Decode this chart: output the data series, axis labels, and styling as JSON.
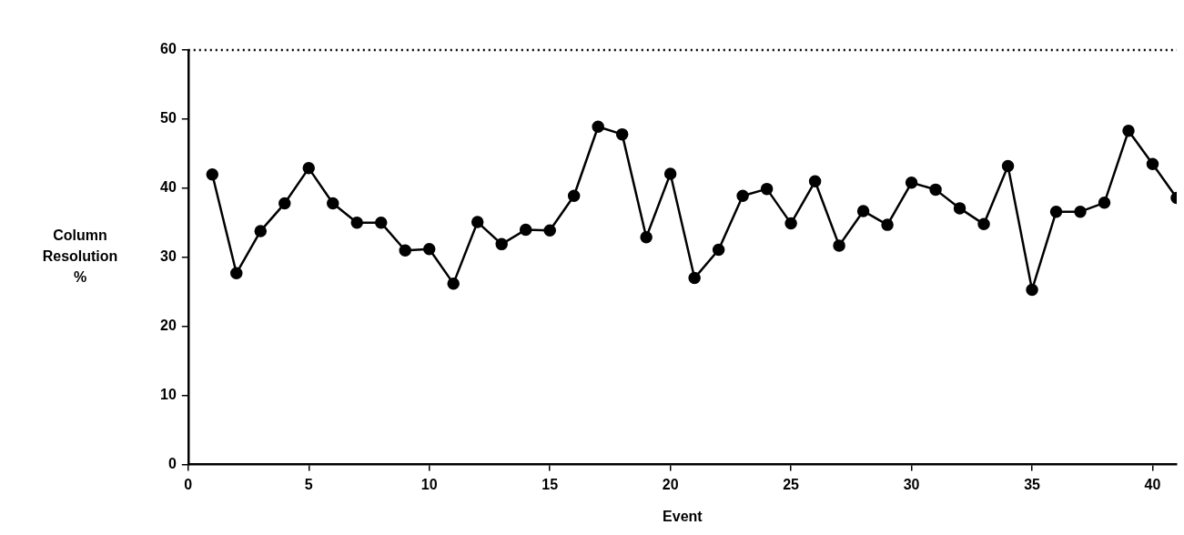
{
  "chart_data": {
    "type": "line",
    "xlabel": "Event",
    "ylabel": "Column Resolution %",
    "x": [
      1,
      2,
      3,
      4,
      5,
      6,
      7,
      8,
      9,
      10,
      11,
      12,
      13,
      14,
      15,
      16,
      17,
      18,
      19,
      20,
      21,
      22,
      23,
      24,
      25,
      26,
      27,
      28,
      29,
      30,
      31,
      32,
      33,
      34,
      35,
      36,
      37,
      38,
      39,
      40,
      41
    ],
    "series": [
      {
        "color": "#000000",
        "values": [
          42,
          27.7,
          33.8,
          37.8,
          42.9,
          37.8,
          35,
          35,
          31,
          31.2,
          26.2,
          35.1,
          31.9,
          34,
          33.9,
          38.9,
          48.9,
          47.8,
          32.9,
          42.1,
          27,
          31.1,
          38.9,
          39.9,
          34.9,
          41,
          31.7,
          36.7,
          34.7,
          40.8,
          39.8,
          37.1,
          34.8,
          43.2,
          25.3,
          36.6,
          36.6,
          37.9,
          48.3,
          43.5,
          38.6
        ]
      }
    ],
    "xlim": [
      0,
      41
    ],
    "xticks": [
      0,
      5,
      10,
      15,
      20,
      25,
      30,
      35,
      40
    ],
    "ylim": [
      0,
      60
    ],
    "yticks": [
      0,
      10,
      20,
      30,
      40,
      50,
      60
    ],
    "ref_lines": [
      {
        "axis": "y",
        "value": 60,
        "line_style": "dotted",
        "color": "#000000"
      }
    ],
    "grid": false,
    "legend": false,
    "marker": "circle",
    "line_style": "solid"
  }
}
